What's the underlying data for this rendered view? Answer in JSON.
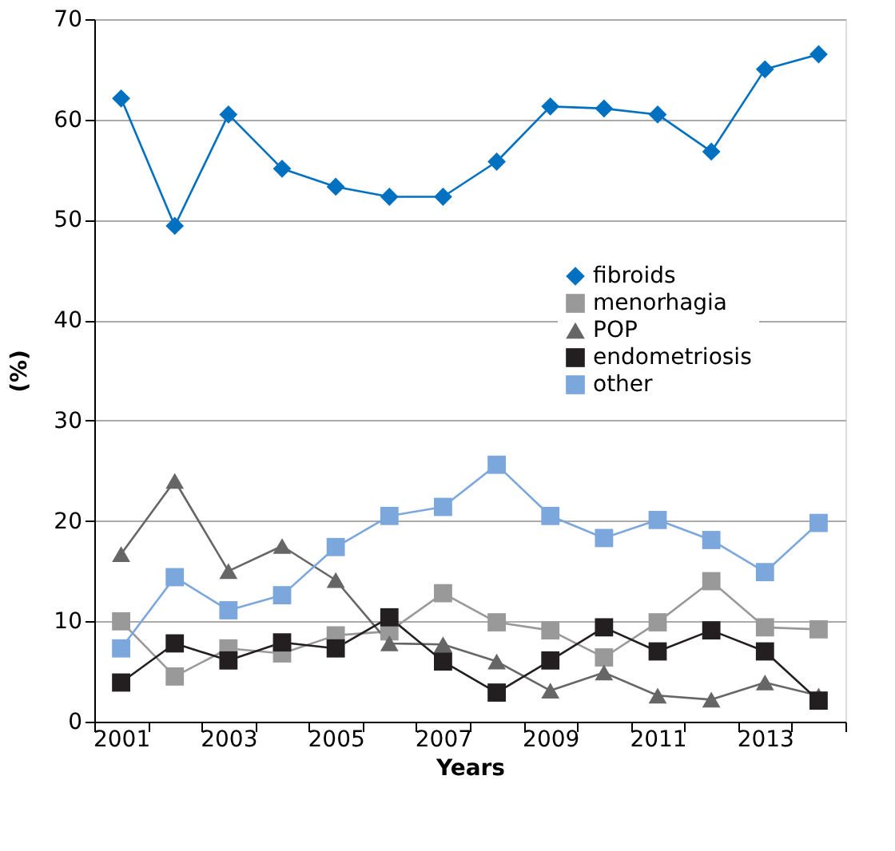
{
  "chart_data": {
    "type": "line",
    "xlabel": "Years",
    "ylabel": "(%)",
    "x": [
      2001,
      2002,
      2003,
      2004,
      2005,
      2006,
      2007,
      2008,
      2009,
      2010,
      2011,
      2012,
      2013,
      2014
    ],
    "xlim": [
      2000.5,
      2014.5
    ],
    "xticks": [
      {
        "value": 2000.5,
        "label": null
      },
      2001,
      {
        "value": 2001.5,
        "label": null
      },
      {
        "value": 2002.5,
        "label": null
      },
      2003,
      {
        "value": 2003.5,
        "label": null
      },
      {
        "value": 2004.5,
        "label": null
      },
      2005,
      {
        "value": 2005.5,
        "label": null
      },
      {
        "value": 2006.5,
        "label": null
      },
      2007,
      {
        "value": 2007.5,
        "label": null
      },
      {
        "value": 2008.5,
        "label": null
      },
      2009,
      {
        "value": 2009.5,
        "label": null
      },
      {
        "value": 2010.5,
        "label": null
      },
      2011,
      {
        "value": 2011.5,
        "label": null
      },
      {
        "value": 2012.5,
        "label": null
      },
      2013,
      {
        "value": 2013.5,
        "label": null
      },
      {
        "value": 2014.5,
        "label": null
      }
    ],
    "ylim": [
      0,
      70
    ],
    "yticks": [
      0,
      10,
      20,
      30,
      40,
      50,
      60,
      70
    ],
    "grid": "y",
    "legend": "right",
    "line_style": "solid",
    "series": [
      {
        "name": "fibroids",
        "color": "#0070c0",
        "marker": "diamond",
        "values": [
          62.1,
          49.4,
          60.5,
          55.1,
          53.3,
          52.3,
          52.3,
          55.8,
          61.3,
          61.1,
          60.5,
          56.8,
          65.0,
          66.5
        ]
      },
      {
        "name": "menorhagia",
        "color": "#999999",
        "marker": "square",
        "values": [
          10.0,
          4.5,
          7.3,
          6.8,
          8.6,
          9.0,
          12.8,
          9.9,
          9.1,
          6.4,
          9.9,
          14.0,
          9.4,
          9.2
        ]
      },
      {
        "name": "POP",
        "color": "#666666",
        "marker": "triangle",
        "values": [
          16.7,
          24.0,
          15.0,
          17.5,
          14.1,
          7.8,
          7.7,
          6.0,
          3.1,
          4.9,
          2.6,
          2.2,
          3.9,
          2.6
        ]
      },
      {
        "name": "endometriosis",
        "color": "#231f20",
        "marker": "square",
        "values": [
          3.9,
          7.8,
          6.1,
          7.9,
          7.3,
          10.4,
          6.0,
          2.9,
          6.1,
          9.4,
          7.0,
          9.1,
          7.0,
          2.1
        ]
      },
      {
        "name": "other",
        "color": "#7ba7dc",
        "marker": "square",
        "values": [
          7.3,
          14.4,
          11.1,
          12.6,
          17.4,
          20.5,
          21.4,
          25.6,
          20.5,
          18.3,
          20.1,
          18.1,
          14.9,
          19.8
        ]
      }
    ]
  }
}
